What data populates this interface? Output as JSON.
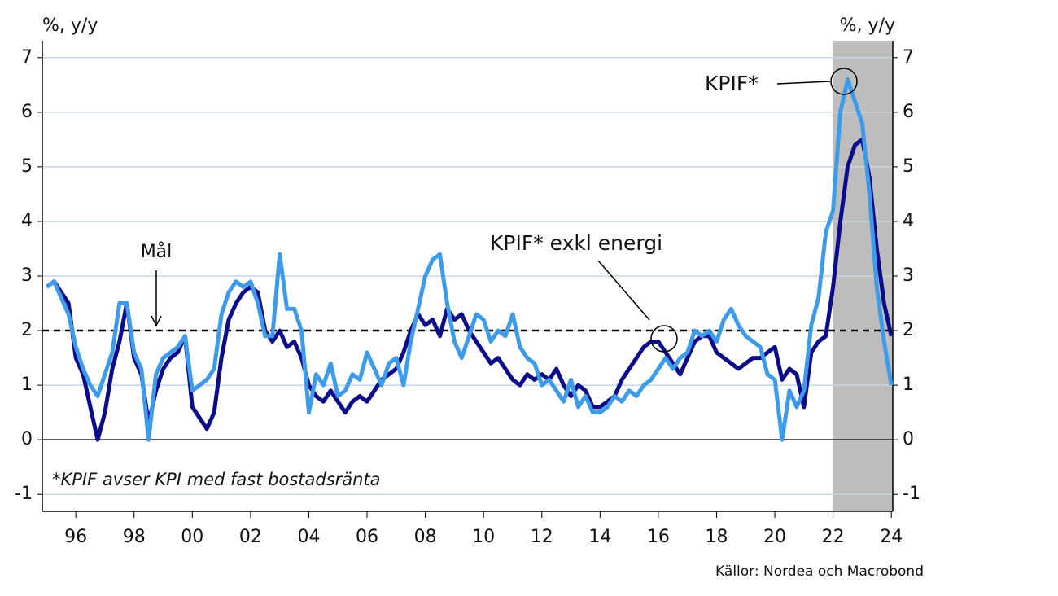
{
  "chart_data": {
    "type": "line",
    "y_label": "%, y/y",
    "y2_label": "%, y/y",
    "x": [
      1995,
      1995.25,
      1995.5,
      1995.75,
      1996,
      1996.25,
      1996.5,
      1996.75,
      1997,
      1997.25,
      1997.5,
      1997.75,
      1998,
      1998.25,
      1998.5,
      1998.75,
      1999,
      1999.25,
      1999.5,
      1999.75,
      2000,
      2000.25,
      2000.5,
      2000.75,
      2001,
      2001.25,
      2001.5,
      2001.75,
      2002,
      2002.25,
      2002.5,
      2002.75,
      2003,
      2003.25,
      2003.5,
      2003.75,
      2004,
      2004.25,
      2004.5,
      2004.75,
      2005,
      2005.25,
      2005.5,
      2005.75,
      2006,
      2006.25,
      2006.5,
      2006.75,
      2007,
      2007.25,
      2007.5,
      2007.75,
      2008,
      2008.25,
      2008.5,
      2008.75,
      2009,
      2009.25,
      2009.5,
      2009.75,
      2010,
      2010.25,
      2010.5,
      2010.75,
      2011,
      2011.25,
      2011.5,
      2011.75,
      2012,
      2012.25,
      2012.5,
      2012.75,
      2013,
      2013.25,
      2013.5,
      2013.75,
      2014,
      2014.25,
      2014.5,
      2014.75,
      2015,
      2015.25,
      2015.5,
      2015.75,
      2016,
      2016.25,
      2016.5,
      2016.75,
      2017,
      2017.25,
      2017.5,
      2017.75,
      2018,
      2018.25,
      2018.5,
      2018.75,
      2019,
      2019.25,
      2019.5,
      2019.75,
      2020,
      2020.25,
      2020.5,
      2020.75,
      2021,
      2021.25,
      2021.5,
      2021.75,
      2022,
      2022.25,
      2022.5,
      2022.75,
      2023,
      2023.25,
      2023.5,
      2023.75,
      2024
    ],
    "series": [
      {
        "name": "KPIF* exkl energi",
        "color": "#0c0c8a",
        "values": [
          2.8,
          2.9,
          2.7,
          2.5,
          1.5,
          1.2,
          0.6,
          0.0,
          0.5,
          1.3,
          1.8,
          2.5,
          1.5,
          1.2,
          0.3,
          0.9,
          1.3,
          1.5,
          1.6,
          1.9,
          0.6,
          0.4,
          0.2,
          0.5,
          1.5,
          2.2,
          2.5,
          2.7,
          2.8,
          2.7,
          2.0,
          1.8,
          2.0,
          1.7,
          1.8,
          1.5,
          1.0,
          0.8,
          0.7,
          0.9,
          0.7,
          0.5,
          0.7,
          0.8,
          0.7,
          0.9,
          1.1,
          1.2,
          1.3,
          1.6,
          2.0,
          2.3,
          2.1,
          2.2,
          1.9,
          2.4,
          2.2,
          2.3,
          2.0,
          1.8,
          1.6,
          1.4,
          1.5,
          1.3,
          1.1,
          1.0,
          1.2,
          1.1,
          1.2,
          1.1,
          1.3,
          1.0,
          0.8,
          1.0,
          0.9,
          0.6,
          0.6,
          0.7,
          0.8,
          1.1,
          1.3,
          1.5,
          1.7,
          1.8,
          1.8,
          1.6,
          1.4,
          1.2,
          1.5,
          1.8,
          1.9,
          1.9,
          1.6,
          1.5,
          1.4,
          1.3,
          1.4,
          1.5,
          1.5,
          1.6,
          1.7,
          1.1,
          1.3,
          1.2,
          0.6,
          1.6,
          1.8,
          1.9,
          2.8,
          4.0,
          5.0,
          5.4,
          5.5,
          4.8,
          3.5,
          2.5,
          1.9
        ]
      },
      {
        "name": "KPIF*",
        "color": "#3d9be9",
        "values": [
          2.8,
          2.9,
          2.6,
          2.3,
          1.7,
          1.3,
          1.0,
          0.8,
          1.2,
          1.6,
          2.5,
          2.5,
          1.6,
          1.3,
          0.0,
          1.2,
          1.5,
          1.6,
          1.7,
          1.9,
          0.9,
          1.0,
          1.1,
          1.3,
          2.3,
          2.7,
          2.9,
          2.8,
          2.9,
          2.5,
          1.9,
          1.9,
          3.4,
          2.4,
          2.4,
          2.0,
          0.5,
          1.2,
          1.0,
          1.4,
          0.8,
          0.9,
          1.2,
          1.1,
          1.6,
          1.3,
          1.0,
          1.4,
          1.5,
          1.0,
          1.8,
          2.4,
          3.0,
          3.3,
          3.4,
          2.5,
          1.8,
          1.5,
          1.9,
          2.3,
          2.2,
          1.8,
          2.0,
          1.9,
          2.3,
          1.7,
          1.5,
          1.4,
          1.0,
          1.1,
          0.9,
          0.7,
          1.1,
          0.6,
          0.8,
          0.5,
          0.5,
          0.6,
          0.8,
          0.7,
          0.9,
          0.8,
          1.0,
          1.1,
          1.3,
          1.5,
          1.3,
          1.5,
          1.6,
          2.0,
          1.9,
          2.0,
          1.8,
          2.2,
          2.4,
          2.1,
          1.9,
          1.8,
          1.7,
          1.2,
          1.1,
          0.0,
          0.9,
          0.6,
          0.9,
          2.1,
          2.6,
          3.8,
          4.2,
          6.0,
          6.6,
          6.2,
          5.8,
          4.5,
          2.8,
          1.8,
          1.0
        ]
      }
    ],
    "xlim": [
      1994.85,
      2024.05
    ],
    "xticks": [
      {
        "value": 1996,
        "label": "96"
      },
      {
        "value": 1998,
        "label": "98"
      },
      {
        "value": 2000,
        "label": "00"
      },
      {
        "value": 2002,
        "label": "02"
      },
      {
        "value": 2004,
        "label": "04"
      },
      {
        "value": 2006,
        "label": "06"
      },
      {
        "value": 2008,
        "label": "08"
      },
      {
        "value": 2010,
        "label": "10"
      },
      {
        "value": 2012,
        "label": "12"
      },
      {
        "value": 2014,
        "label": "14"
      },
      {
        "value": 2016,
        "label": "16"
      },
      {
        "value": 2018,
        "label": "18"
      },
      {
        "value": 2020,
        "label": "20"
      },
      {
        "value": 2022,
        "label": "22"
      },
      {
        "value": 2024,
        "label": "24"
      }
    ],
    "ylim": [
      -1.31,
      7.31
    ],
    "yticks": [
      -1,
      0,
      1,
      2,
      3,
      4,
      5,
      6,
      7
    ],
    "y2lim": [
      -1.31,
      7.31
    ],
    "y2ticks": [
      -1,
      0,
      1,
      2,
      3,
      4,
      5,
      6,
      7
    ],
    "grid": true,
    "target": {
      "label": "Mål",
      "value": 2
    },
    "shaded_xrange": [
      2022,
      2024.05
    ],
    "annotations": [
      "KPIF*",
      "KPIF* exkl energi"
    ],
    "footnote": "*KPIF avser KPI med fast bostadsränta",
    "source": "Källor: Nordea och Macrobond"
  }
}
